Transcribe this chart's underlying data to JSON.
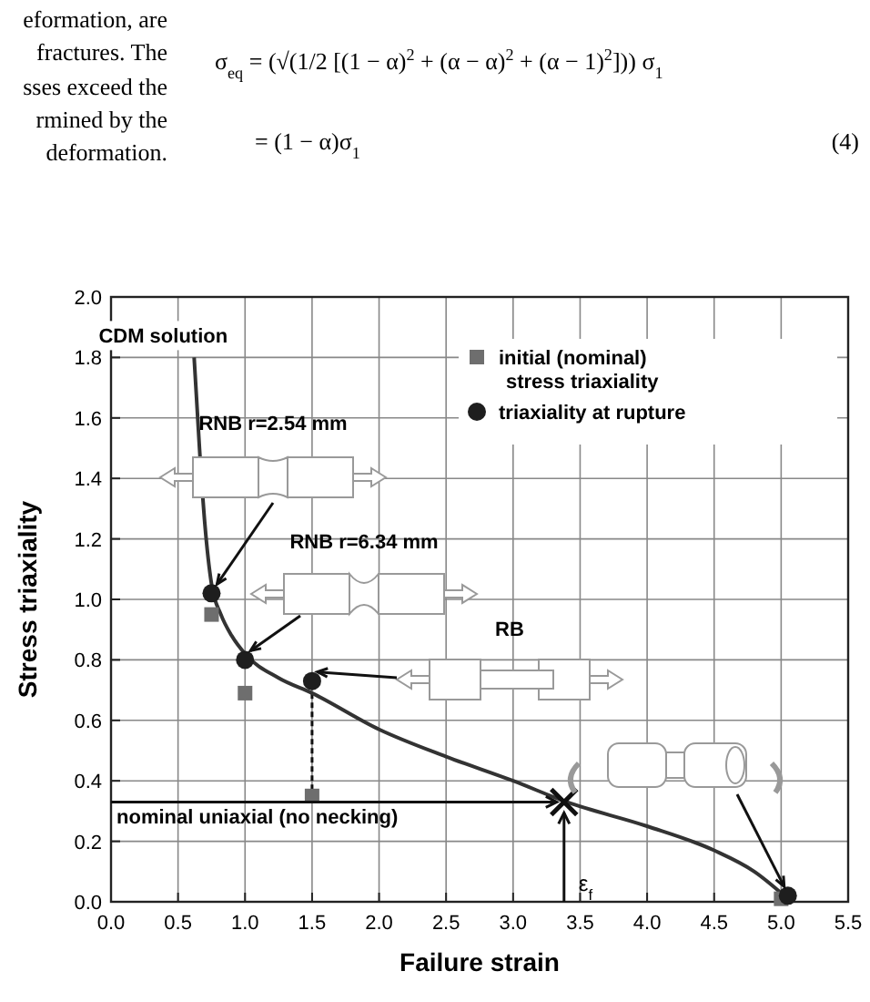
{
  "chart_data": {
    "type": "line",
    "xlabel": "Failure strain",
    "ylabel": "Stress triaxiality",
    "xlim": [
      0,
      5.5
    ],
    "ylim": [
      0,
      2.0
    ],
    "xticks": [
      {
        "value": 0,
        "label": "0.0"
      },
      0.5,
      {
        "value": 1,
        "label": "1.0"
      },
      1.5,
      {
        "value": 2,
        "label": "2.0"
      },
      2.5,
      {
        "value": 3,
        "label": "3.0"
      },
      3.5,
      {
        "value": 4,
        "label": "4.0"
      },
      4.5,
      {
        "value": 5,
        "label": "5.0"
      },
      5.5
    ],
    "yticks": [
      {
        "value": 0,
        "label": "0.0"
      },
      0.2,
      0.4,
      0.6,
      0.8,
      {
        "value": 1,
        "label": "1.0"
      },
      1.2,
      1.4,
      1.6,
      1.8,
      {
        "value": 2,
        "label": "2.0"
      }
    ],
    "grid": true,
    "legend": "top right",
    "ref_lines": [
      {
        "axis": "y",
        "value": 0.33,
        "label": "nominal uniaxial (no necking)",
        "color": "#111111"
      },
      {
        "axis": "x",
        "value": 3.38,
        "label": "ε$_{f}$",
        "color": "#111111"
      }
    ],
    "series": [
      {
        "color": "#333333",
        "marker": "none",
        "line_style": "solid",
        "x": [
          0.62,
          0.66,
          0.7,
          0.75,
          0.82,
          0.9,
          1.0,
          1.25,
          1.5,
          2.0,
          2.5,
          3.0,
          3.4,
          4.0,
          4.5,
          4.8,
          5.05
        ],
        "values": [
          1.8,
          1.5,
          1.25,
          1.05,
          0.95,
          0.88,
          0.82,
          0.74,
          0.69,
          0.57,
          0.48,
          0.4,
          0.33,
          0.25,
          0.17,
          0.1,
          0.01
        ]
      },
      {
        "type": "scatter",
        "name": "initial (nominal) stress triaxiality",
        "color": "#6e6e6e",
        "marker": "square",
        "x": [
          0.75,
          1.0,
          1.5,
          5.0
        ],
        "values": [
          0.95,
          0.69,
          0.35,
          0.01
        ]
      },
      {
        "type": "scatter",
        "name": "triaxiality at rupture",
        "color": "#1e1e1e",
        "marker": "circle",
        "x": [
          0.75,
          1.0,
          1.5,
          5.05
        ],
        "values": [
          1.02,
          0.8,
          0.73,
          0.02
        ]
      },
      {
        "type": "scatter",
        "color": "#111111",
        "marker": "cross",
        "x": [
          3.38
        ],
        "values": [
          0.33
        ]
      }
    ],
    "annotations": [
      "CDM solution",
      "RNB r=2.54 mm",
      "RNB r=6.34 mm",
      "RB",
      "eformation, are",
      "fractures. The",
      "sses exceed the",
      "rmined by the",
      "deformation.",
      "σ$_{eq}$ = (√(1/2 [(1 − α)$^{2}$ + (α − α)$^{2}$ + (α − 1)$^{2}$])) σ$_{1}$",
      "= (1 − α)σ$_{1}$",
      "(4)"
    ]
  }
}
